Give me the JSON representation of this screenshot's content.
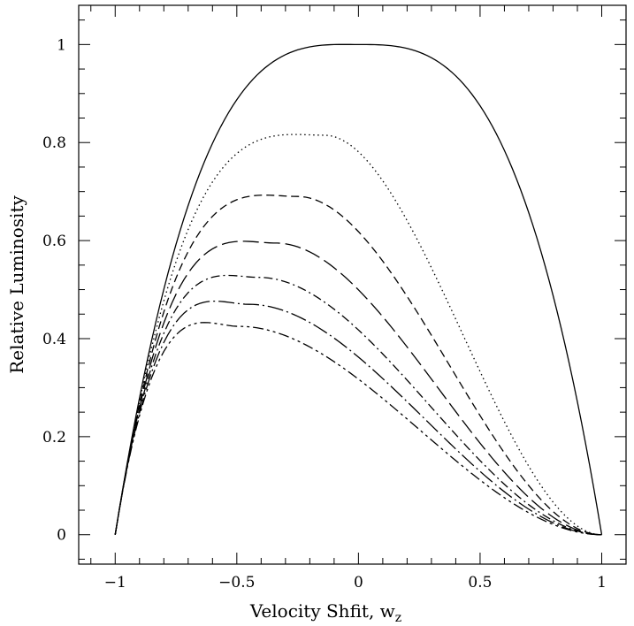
{
  "chart_data": {
    "type": "line",
    "title": "",
    "xlabel": "Velocity Shfit, w",
    "xlabel_subscript": "z",
    "ylabel": "Relative Luminosity",
    "xlim": [
      -1.15,
      1.1
    ],
    "ylim": [
      -0.06,
      1.08
    ],
    "x_ticks": [
      -1,
      -0.5,
      0,
      0.5,
      1
    ],
    "x_tick_labels": [
      "−1",
      "−0.5",
      "0",
      "0.5",
      "1"
    ],
    "y_ticks": [
      0,
      0.2,
      0.4,
      0.6,
      0.8,
      1
    ],
    "y_tick_labels": [
      "0",
      "0.2",
      "0.4",
      "0.6",
      "0.8",
      "1"
    ],
    "x_minor_step": 0.1,
    "y_minor_step": 0.05,
    "grid": false,
    "legend": "none",
    "series": [
      {
        "peak_x": 0.0,
        "peak_y": 1.0,
        "dash": "",
        "color": "#000000"
      },
      {
        "peak_x": -0.14,
        "peak_y": 0.815,
        "dash": "1.5 3.5",
        "color": "#000000"
      },
      {
        "peak_x": -0.25,
        "peak_y": 0.69,
        "dash": "9 5",
        "color": "#000000"
      },
      {
        "peak_x": -0.34,
        "peak_y": 0.595,
        "dash": "18 6",
        "color": "#000000"
      },
      {
        "peak_x": -0.41,
        "peak_y": 0.525,
        "dash": "10 4 2 4",
        "color": "#000000"
      },
      {
        "peak_x": -0.45,
        "peak_y": 0.47,
        "dash": "18 4 2 4",
        "color": "#000000"
      },
      {
        "peak_x": -0.49,
        "peak_y": 0.425,
        "dash": "12 4 3 4 3 4",
        "color": "#000000"
      }
    ],
    "x_range": [
      -1,
      1
    ]
  }
}
